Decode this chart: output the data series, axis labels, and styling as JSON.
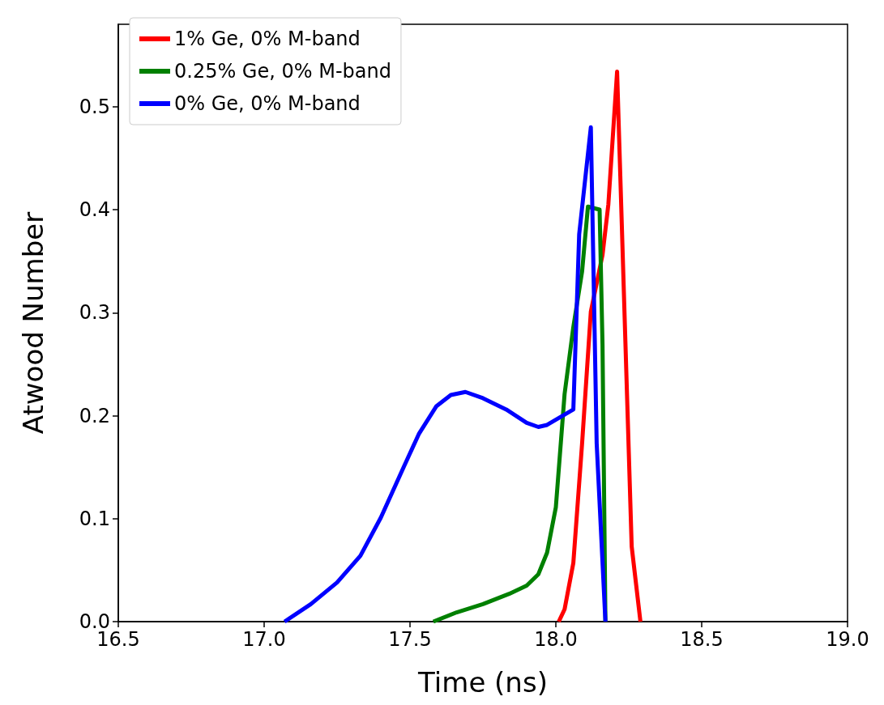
{
  "chart_data": {
    "type": "line",
    "xlabel": "Time (ns)",
    "ylabel": "Atwood Number",
    "xlim": [
      16.5,
      19.0
    ],
    "xticks": [
      16.5,
      {
        "value": 17,
        "label": "17.0"
      },
      17.5,
      {
        "value": 18,
        "label": "18.0"
      },
      18.5,
      {
        "value": 19,
        "label": "19.0"
      }
    ],
    "ylim": [
      0,
      0.58
    ],
    "yticks": [
      {
        "value": 0,
        "label": "0.0"
      },
      0.1,
      0.2,
      0.3,
      0.4,
      0.5
    ],
    "grid": false,
    "legend": "top left",
    "marker": "none",
    "line_style": "solid",
    "series": [
      {
        "name": "1% Ge, 0% M-band",
        "color": "#ff0000",
        "x": [
          18.01,
          18.03,
          18.06,
          18.09,
          18.12,
          18.16,
          18.18,
          18.21,
          18.26,
          18.29
        ],
        "values": [
          0,
          0.012,
          0.057,
          0.173,
          0.301,
          0.356,
          0.405,
          0.534,
          0.073,
          0
        ]
      },
      {
        "name": "0.25% Ge, 0% M-band",
        "color": "#008000",
        "x": [
          17.58,
          17.66,
          17.75,
          17.84,
          17.9,
          17.94,
          17.97,
          18.0,
          18.03,
          18.06,
          18.09,
          18.11,
          18.15,
          18.16,
          18.17
        ],
        "values": [
          0,
          0.009,
          0.017,
          0.027,
          0.035,
          0.046,
          0.067,
          0.111,
          0.221,
          0.286,
          0.34,
          0.403,
          0.4,
          0.269,
          0
        ]
      },
      {
        "name": "0% Ge, 0% M-band",
        "color": "#0000ff",
        "x": [
          17.07,
          17.16,
          17.25,
          17.33,
          17.4,
          17.475,
          17.53,
          17.59,
          17.64,
          17.69,
          17.75,
          17.83,
          17.9,
          17.94,
          17.97,
          18.06,
          18.08,
          18.12,
          18.14,
          18.17
        ],
        "values": [
          0,
          0.017,
          0.038,
          0.064,
          0.101,
          0.148,
          0.182,
          0.209,
          0.22,
          0.223,
          0.217,
          0.206,
          0.193,
          0.189,
          0.191,
          0.206,
          0.376,
          0.48,
          0.173,
          0
        ]
      }
    ]
  }
}
